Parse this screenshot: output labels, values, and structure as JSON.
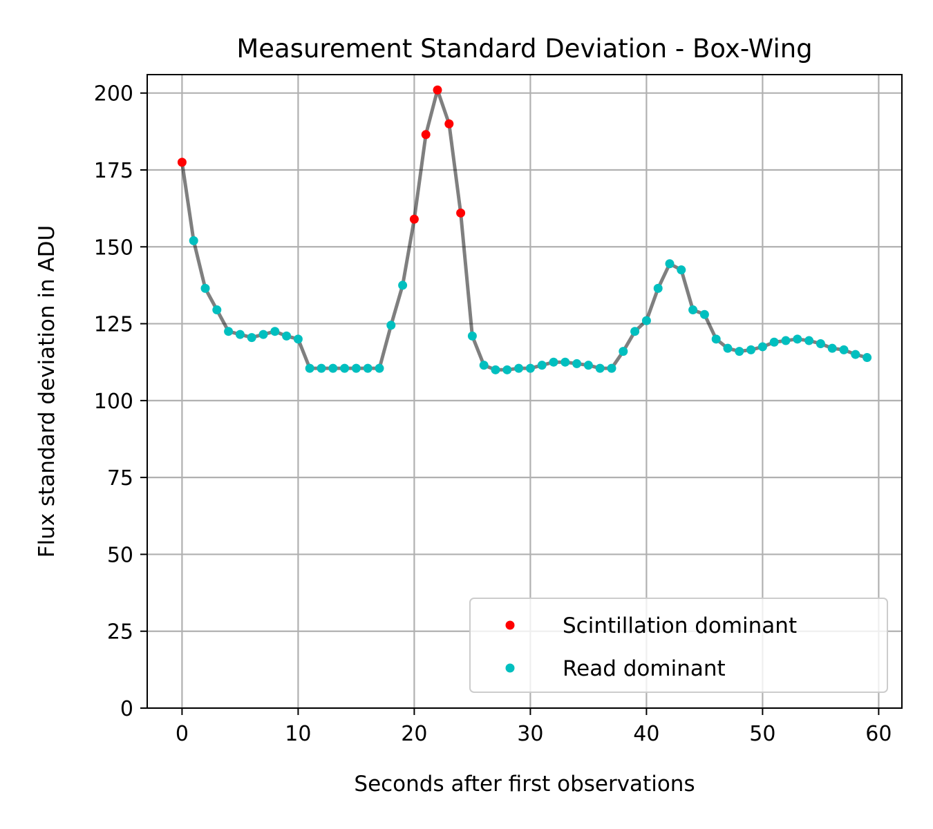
{
  "chart_data": {
    "type": "scatter",
    "title": "Measurement Standard Deviation - Box-Wing",
    "xlabel": "Seconds after first observations",
    "ylabel": "Flux standard deviation in ADU",
    "xlim": [
      -3,
      62
    ],
    "ylim": [
      0,
      206
    ],
    "xticks": [
      0,
      10,
      20,
      30,
      40,
      50,
      60
    ],
    "yticks": [
      0,
      25,
      50,
      75,
      100,
      125,
      150,
      175,
      200
    ],
    "grid": true,
    "legend_position": "lower right",
    "line": {
      "name": "",
      "color": "#808080",
      "x": [
        0,
        1,
        2,
        3,
        4,
        5,
        6,
        7,
        8,
        9,
        10,
        11,
        12,
        13,
        14,
        15,
        16,
        17,
        18,
        19,
        20,
        21,
        22,
        23,
        24,
        25,
        26,
        27,
        28,
        29,
        30,
        31,
        32,
        33,
        34,
        35,
        36,
        37,
        38,
        39,
        40,
        41,
        42,
        43,
        44,
        45,
        46,
        47,
        48,
        49,
        50,
        51,
        52,
        53,
        54,
        55,
        56,
        57,
        58,
        59
      ],
      "y": [
        177.5,
        152,
        136.5,
        129.5,
        122.5,
        121.5,
        120.5,
        121.5,
        122.5,
        121,
        120,
        110.5,
        110.5,
        110.5,
        110.5,
        110.5,
        110.5,
        110.5,
        124.5,
        137.5,
        159,
        186.5,
        201,
        190,
        161,
        121,
        111.5,
        110,
        110,
        110.5,
        110.5,
        111.5,
        112.5,
        112.5,
        112,
        111.5,
        110.5,
        110.5,
        116,
        122.5,
        126,
        136.5,
        144.5,
        142.5,
        129.5,
        128,
        120,
        117,
        116,
        116.5,
        117.5,
        119,
        119.5,
        120,
        119.5,
        118.5,
        117,
        116.5,
        115,
        114
      ]
    },
    "series": [
      {
        "name": "Scintillation dominant",
        "color": "#ff0000",
        "x": [
          0,
          20,
          21,
          22,
          23,
          24
        ],
        "y": [
          177.5,
          159,
          186.5,
          201,
          190,
          161
        ]
      },
      {
        "name": "Read dominant",
        "color": "#00bfbf",
        "x": [
          1,
          2,
          3,
          4,
          5,
          6,
          7,
          8,
          9,
          10,
          11,
          12,
          13,
          14,
          15,
          16,
          17,
          18,
          19,
          25,
          26,
          27,
          28,
          29,
          30,
          31,
          32,
          33,
          34,
          35,
          36,
          37,
          38,
          39,
          40,
          41,
          42,
          43,
          44,
          45,
          46,
          47,
          48,
          49,
          50,
          51,
          52,
          53,
          54,
          55,
          56,
          57,
          58,
          59
        ],
        "y": [
          152,
          136.5,
          129.5,
          122.5,
          121.5,
          120.5,
          121.5,
          122.5,
          121,
          120,
          110.5,
          110.5,
          110.5,
          110.5,
          110.5,
          110.5,
          110.5,
          124.5,
          137.5,
          121,
          111.5,
          110,
          110,
          110.5,
          110.5,
          111.5,
          112.5,
          112.5,
          112,
          111.5,
          110.5,
          110.5,
          116,
          122.5,
          126,
          136.5,
          144.5,
          142.5,
          129.5,
          128,
          120,
          117,
          116,
          116.5,
          117.5,
          119,
          119.5,
          120,
          119.5,
          118.5,
          117,
          116.5,
          115,
          114
        ]
      }
    ]
  }
}
